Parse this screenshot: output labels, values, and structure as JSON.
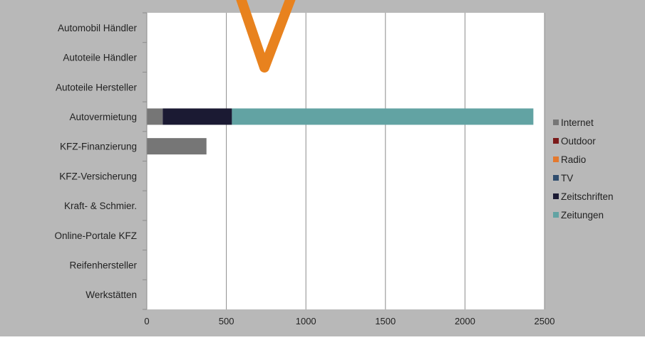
{
  "chart_data": {
    "type": "bar",
    "orientation": "horizontal",
    "stacked": true,
    "categories": [
      "Automobil Händler",
      "Autoteile Händler",
      "Autoteile Hersteller",
      "Autovermietung",
      "KFZ-Finanzierung",
      "KFZ-Versicherung",
      "Kraft- & Schmier.",
      "Online-Portale KFZ",
      "Reifenhersteller",
      "Werkstätten"
    ],
    "series": [
      {
        "name": "Internet",
        "color": "#767676",
        "values": [
          0,
          0,
          0,
          100,
          375,
          0,
          0,
          0,
          0,
          0
        ]
      },
      {
        "name": "Outdoor",
        "color": "#7b1a1a",
        "values": [
          0,
          0,
          0,
          0,
          0,
          0,
          0,
          0,
          0,
          0
        ]
      },
      {
        "name": "Radio",
        "color": "#e4792e",
        "values": [
          0,
          0,
          0,
          0,
          0,
          0,
          0,
          0,
          0,
          0
        ]
      },
      {
        "name": "TV",
        "color": "#2f4d6e",
        "values": [
          0,
          0,
          0,
          0,
          0,
          0,
          0,
          0,
          0,
          0
        ]
      },
      {
        "name": "Zeitschriften",
        "color": "#1b1a33",
        "values": [
          0,
          0,
          0,
          435,
          0,
          0,
          0,
          0,
          0,
          0
        ]
      },
      {
        "name": "Zeitungen",
        "color": "#62a3a3",
        "values": [
          0,
          0,
          0,
          1895,
          0,
          0,
          0,
          0,
          0,
          0
        ]
      }
    ],
    "x_ticks": [
      "0",
      "500",
      "1000",
      "1500",
      "2000",
      "2500"
    ],
    "xlim": [
      0,
      2500
    ],
    "grid": "vertical",
    "legend_position": "right",
    "title": "",
    "xlabel": "",
    "ylabel": ""
  },
  "colors": {
    "frame_background": "#b8b8b8",
    "plot_background": "#ffffff",
    "gridline": "#8c8c8c",
    "overlay_arrow": "#e8821e"
  },
  "overlay": {
    "icon": "chevron-down-icon"
  }
}
